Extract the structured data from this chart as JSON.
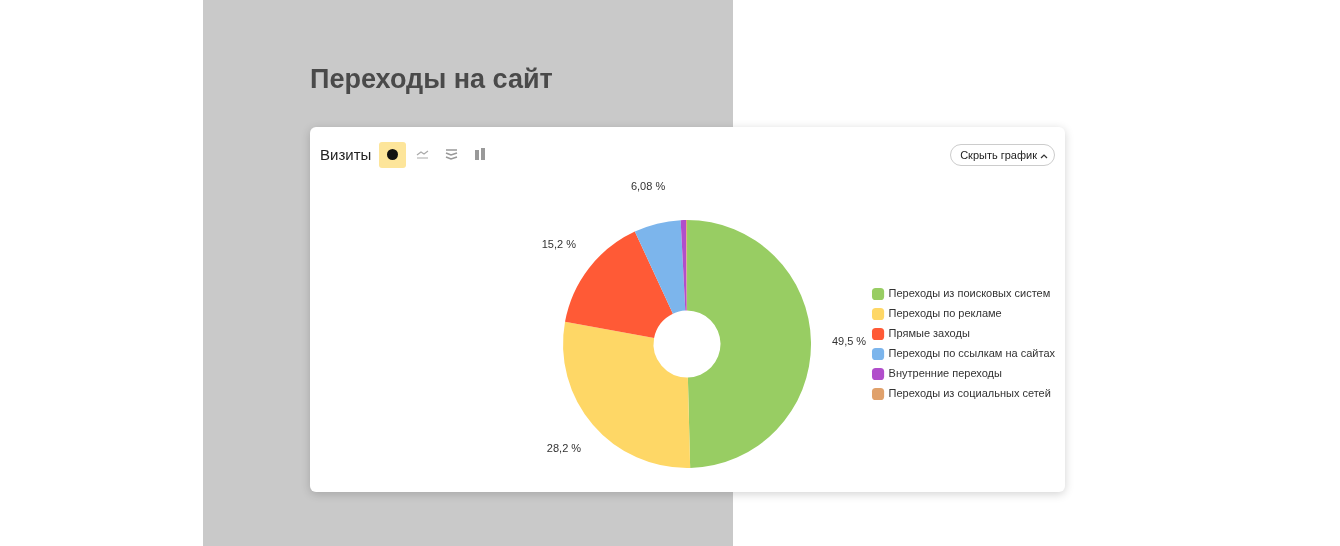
{
  "chart_data": {
    "type": "donut",
    "title": "Переходы на сайт",
    "subtitle": "Визиты",
    "categories": [
      "Переходы из поисковых систем",
      "Переходы по рекламе",
      "Прямые заходы",
      "Переходы по ссылкам на сайтах",
      "Внутренние переходы",
      "Переходы из социальных сетей"
    ],
    "values": [
      49.5,
      28.2,
      15.2,
      6.08,
      0.7,
      0.12
    ],
    "colors": [
      "#98cd63",
      "#fed766",
      "#ff5a36",
      "#7cb5ec",
      "#b14ecb",
      "#e0a16b"
    ],
    "value_labels": [
      "49,5 %",
      "28,2 %",
      "15,2 %",
      "6,08 %",
      null,
      null
    ],
    "legend": "right",
    "annotations": [
      "Скрыть график"
    ]
  }
}
